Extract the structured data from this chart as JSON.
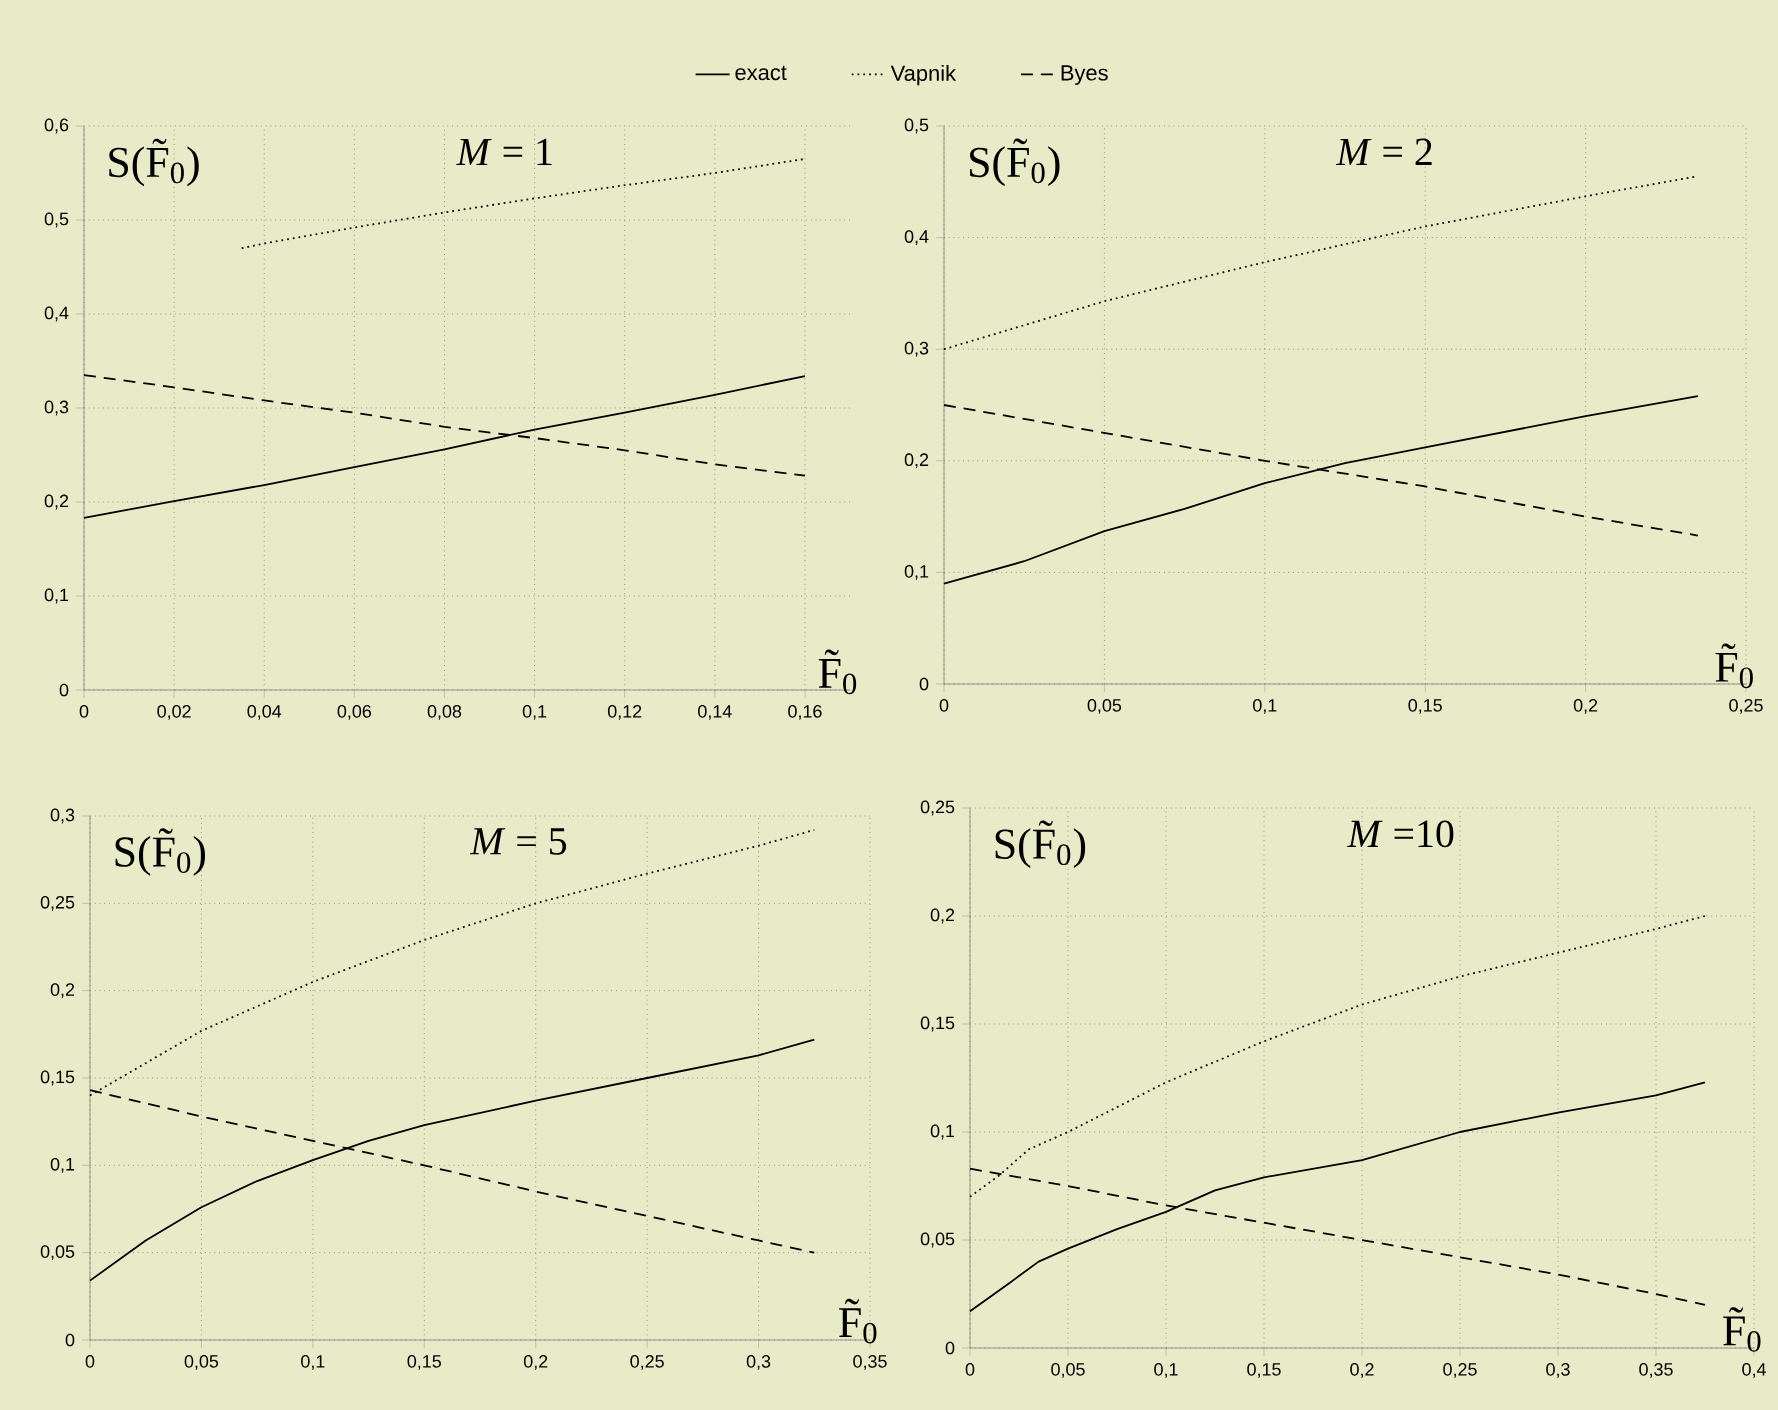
{
  "chart_data": [
    {
      "type": "line",
      "title": "*M* = 1",
      "xlabel": "F̃$_{0}$",
      "ylabel": "S(F̃$_{0}$)",
      "legend": "top",
      "grid": true,
      "xlim": [
        0,
        0.17
      ],
      "ylim": [
        0,
        0.6
      ],
      "xticks": [
        0,
        {
          "value": 0.02,
          "label": "0,02"
        },
        {
          "value": 0.04,
          "label": "0,04"
        },
        {
          "value": 0.06,
          "label": "0,06"
        },
        {
          "value": 0.08,
          "label": "0,08"
        },
        {
          "value": 0.1,
          "label": "0,1"
        },
        {
          "value": 0.12,
          "label": "0,12"
        },
        {
          "value": 0.14,
          "label": "0,14"
        },
        {
          "value": 0.16,
          "label": "0,16"
        }
      ],
      "yticks": [
        0,
        {
          "value": 0.1,
          "label": "0,1"
        },
        {
          "value": 0.2,
          "label": "0,2"
        },
        {
          "value": 0.3,
          "label": "0,3"
        },
        {
          "value": 0.4,
          "label": "0,4"
        },
        {
          "value": 0.5,
          "label": "0,5"
        },
        {
          "value": 0.6,
          "label": "0,6"
        }
      ],
      "series": [
        {
          "name": "exact",
          "color": "#000000",
          "line_style": "solid",
          "x": [
            0,
            0.02,
            0.04,
            0.06,
            0.08,
            0.1,
            0.12,
            0.14,
            0.16
          ],
          "values": [
            0.183,
            0.201,
            0.218,
            0.237,
            0.256,
            0.277,
            0.295,
            0.314,
            0.334
          ]
        },
        {
          "name": "Vapnik",
          "color": "#000000",
          "line_style": "dotted",
          "x": [
            0.035,
            0.04,
            0.06,
            0.08,
            0.1,
            0.12,
            0.14,
            0.16
          ],
          "values": [
            0.47,
            0.475,
            0.492,
            0.508,
            0.523,
            0.537,
            0.55,
            0.565
          ]
        },
        {
          "name": "Byes",
          "color": "#000000",
          "line_style": "dashed",
          "x": [
            0,
            0.02,
            0.04,
            0.06,
            0.08,
            0.1,
            0.12,
            0.14,
            0.16
          ],
          "values": [
            0.335,
            0.322,
            0.308,
            0.295,
            0.28,
            0.268,
            0.255,
            0.24,
            0.228
          ]
        }
      ]
    },
    {
      "type": "line",
      "title": "*M* = 2",
      "xlabel": "F̃$_{0}$",
      "ylabel": "S(F̃$_{0}$)",
      "grid": true,
      "xlim": [
        0,
        0.25
      ],
      "ylim": [
        0,
        0.5
      ],
      "xticks": [
        0,
        {
          "value": 0.05,
          "label": "0,05"
        },
        {
          "value": 0.1,
          "label": "0,1"
        },
        {
          "value": 0.15,
          "label": "0,15"
        },
        {
          "value": 0.2,
          "label": "0,2"
        },
        {
          "value": 0.25,
          "label": "0,25"
        }
      ],
      "yticks": [
        0,
        {
          "value": 0.1,
          "label": "0,1"
        },
        {
          "value": 0.2,
          "label": "0,2"
        },
        {
          "value": 0.3,
          "label": "0,3"
        },
        {
          "value": 0.4,
          "label": "0,4"
        },
        {
          "value": 0.5,
          "label": "0,5"
        }
      ],
      "series": [
        {
          "color": "#000000",
          "line_style": "solid",
          "x": [
            0,
            0.025,
            0.05,
            0.075,
            0.1,
            0.125,
            0.15,
            0.175,
            0.2,
            0.235
          ],
          "values": [
            0.09,
            0.11,
            0.137,
            0.157,
            0.18,
            0.198,
            0.212,
            0.226,
            0.24,
            0.258
          ]
        },
        {
          "color": "#000000",
          "line_style": "dotted",
          "x": [
            0,
            0.05,
            0.1,
            0.15,
            0.2,
            0.235
          ],
          "values": [
            0.3,
            0.343,
            0.378,
            0.41,
            0.437,
            0.455
          ]
        },
        {
          "color": "#000000",
          "line_style": "dashed",
          "x": [
            0,
            0.05,
            0.1,
            0.15,
            0.2,
            0.235
          ],
          "values": [
            0.25,
            0.225,
            0.2,
            0.177,
            0.15,
            0.133
          ]
        }
      ]
    },
    {
      "type": "line",
      "title": "*M* = 5",
      "xlabel": "F̃$_{0}$",
      "ylabel": "S(F̃$_{0}$)",
      "grid": true,
      "xlim": [
        0,
        0.35
      ],
      "ylim": [
        0,
        0.3
      ],
      "xticks": [
        0,
        {
          "value": 0.05,
          "label": "0,05"
        },
        {
          "value": 0.1,
          "label": "0,1"
        },
        {
          "value": 0.15,
          "label": "0,15"
        },
        {
          "value": 0.2,
          "label": "0,2"
        },
        {
          "value": 0.25,
          "label": "0,25"
        },
        {
          "value": 0.3,
          "label": "0,3"
        },
        {
          "value": 0.35,
          "label": "0,35"
        }
      ],
      "yticks": [
        0,
        {
          "value": 0.05,
          "label": "0,05"
        },
        {
          "value": 0.1,
          "label": "0,1"
        },
        {
          "value": 0.15,
          "label": "0,15"
        },
        {
          "value": 0.2,
          "label": "0,2"
        },
        {
          "value": 0.25,
          "label": "0,25"
        },
        {
          "value": 0.3,
          "label": "0,3"
        }
      ],
      "series": [
        {
          "color": "#000000",
          "line_style": "solid",
          "x": [
            0,
            0.025,
            0.05,
            0.075,
            0.1,
            0.125,
            0.15,
            0.2,
            0.25,
            0.3,
            0.325
          ],
          "values": [
            0.034,
            0.057,
            0.076,
            0.091,
            0.103,
            0.114,
            0.123,
            0.137,
            0.15,
            0.163,
            0.172
          ]
        },
        {
          "color": "#000000",
          "line_style": "dotted",
          "x": [
            0,
            0.05,
            0.1,
            0.15,
            0.2,
            0.25,
            0.3,
            0.325
          ],
          "values": [
            0.14,
            0.177,
            0.205,
            0.229,
            0.25,
            0.267,
            0.283,
            0.292
          ]
        },
        {
          "color": "#000000",
          "line_style": "dashed",
          "x": [
            0,
            0.05,
            0.1,
            0.15,
            0.2,
            0.25,
            0.3,
            0.325
          ],
          "values": [
            0.143,
            0.128,
            0.114,
            0.1,
            0.085,
            0.071,
            0.057,
            0.05
          ]
        }
      ]
    },
    {
      "type": "line",
      "title": "*M* =10",
      "xlabel": "F̃$_{0}$",
      "ylabel": "S(F̃$_{0}$)",
      "grid": true,
      "xlim": [
        0,
        0.4
      ],
      "ylim": [
        0,
        0.25
      ],
      "xticks": [
        0,
        {
          "value": 0.05,
          "label": "0,05"
        },
        {
          "value": 0.1,
          "label": "0,1"
        },
        {
          "value": 0.15,
          "label": "0,15"
        },
        {
          "value": 0.2,
          "label": "0,2"
        },
        {
          "value": 0.25,
          "label": "0,25"
        },
        {
          "value": 0.3,
          "label": "0,3"
        },
        {
          "value": 0.35,
          "label": "0,35"
        },
        {
          "value": 0.4,
          "label": "0,4"
        }
      ],
      "yticks": [
        0,
        {
          "value": 0.05,
          "label": "0,05"
        },
        {
          "value": 0.1,
          "label": "0,1"
        },
        {
          "value": 0.15,
          "label": "0,15"
        },
        {
          "value": 0.2,
          "label": "0,2"
        },
        {
          "value": 0.25,
          "label": "0,25"
        }
      ],
      "series": [
        {
          "color": "#000000",
          "line_style": "solid",
          "x": [
            0,
            0.02,
            0.035,
            0.05,
            0.075,
            0.1,
            0.125,
            0.15,
            0.2,
            0.25,
            0.3,
            0.35,
            0.375
          ],
          "values": [
            0.017,
            0.03,
            0.04,
            0.046,
            0.055,
            0.063,
            0.073,
            0.079,
            0.087,
            0.1,
            0.109,
            0.117,
            0.123
          ]
        },
        {
          "color": "#000000",
          "line_style": "dotted",
          "x": [
            0,
            0.015,
            0.03,
            0.05,
            0.1,
            0.15,
            0.2,
            0.25,
            0.3,
            0.35,
            0.375
          ],
          "values": [
            0.07,
            0.08,
            0.092,
            0.1,
            0.123,
            0.142,
            0.159,
            0.172,
            0.183,
            0.194,
            0.2
          ]
        },
        {
          "color": "#000000",
          "line_style": "dashed",
          "x": [
            0,
            0.05,
            0.1,
            0.15,
            0.2,
            0.25,
            0.3,
            0.35,
            0.375
          ],
          "values": [
            0.083,
            0.075,
            0.066,
            0.058,
            0.05,
            0.042,
            0.034,
            0.025,
            0.02
          ]
        }
      ]
    }
  ]
}
